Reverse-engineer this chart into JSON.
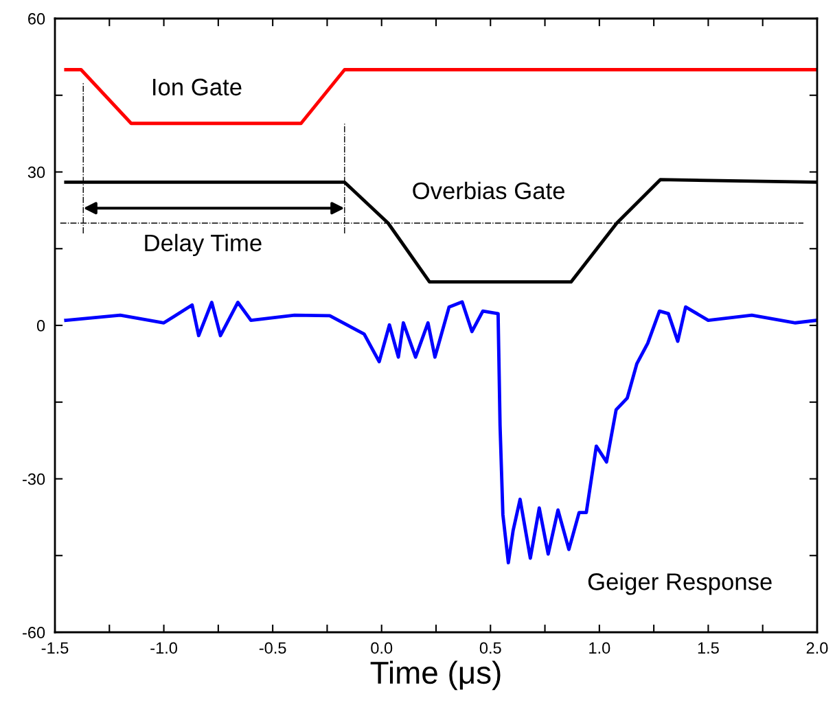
{
  "chart_data": {
    "type": "line",
    "xlabel": "Time (μs)",
    "xlim": [
      -1.5,
      2.0
    ],
    "ylim": [
      -60,
      60
    ],
    "xticks": [
      -1.5,
      {
        "value": -1.25,
        "label": null
      },
      {
        "value": -1,
        "label": "-1.0"
      },
      {
        "value": -0.75,
        "label": null
      },
      -0.5,
      {
        "value": -0.25,
        "label": null
      },
      {
        "value": 0,
        "label": "0.0"
      },
      {
        "value": 0.25,
        "label": null
      },
      0.5,
      {
        "value": 0.75,
        "label": null
      },
      {
        "value": 1,
        "label": "1.0"
      },
      {
        "value": 1.25,
        "label": null
      },
      1.5,
      {
        "value": 1.75,
        "label": null
      },
      {
        "value": 2,
        "label": "2.0"
      }
    ],
    "yticks": [
      -60,
      {
        "value": -45,
        "label": null
      },
      -30,
      {
        "value": -15,
        "label": null
      },
      0,
      {
        "value": 15,
        "label": null
      },
      30,
      {
        "value": 45,
        "label": null
      },
      60
    ],
    "grid": false,
    "legend": false,
    "marker": "none",
    "line_style": "solid",
    "series": [
      {
        "color": "#ff0000",
        "x": [
          -1.45,
          -1.38,
          -1.15,
          -0.37,
          -0.17,
          2.0
        ],
        "values": [
          50,
          50,
          39.5,
          39.5,
          50,
          50
        ]
      },
      {
        "color": "#000000",
        "x": [
          -1.45,
          -0.17,
          0.03,
          0.22,
          0.87,
          1.08,
          1.28,
          2.0
        ],
        "values": [
          28,
          28,
          20,
          8.5,
          8.5,
          20,
          28.5,
          28
        ]
      },
      {
        "color": "#0000ff",
        "x": [
          -1.45,
          -1.2,
          -1.0,
          -0.87,
          -0.84,
          -0.78,
          -0.74,
          -0.66,
          -0.6,
          -0.4,
          -0.238,
          -0.08,
          -0.011,
          0.036,
          0.077,
          0.1,
          0.156,
          0.213,
          0.245,
          0.31,
          0.37,
          0.415,
          0.465,
          0.535,
          0.544,
          0.557,
          0.582,
          0.604,
          0.636,
          0.683,
          0.724,
          0.765,
          0.81,
          0.86,
          0.907,
          0.94,
          0.986,
          1.033,
          1.077,
          1.128,
          1.172,
          1.222,
          1.276,
          1.317,
          1.36,
          1.396,
          1.5,
          1.7,
          1.9,
          2.0
        ],
        "values": [
          1,
          2,
          0.5,
          4,
          -2,
          4.5,
          -2,
          4.5,
          1,
          2,
          1.9,
          -1.7,
          -7.1,
          0.1,
          -6.2,
          0.5,
          -6.2,
          0.5,
          -6.2,
          3.6,
          4.6,
          -1.2,
          2.8,
          2.3,
          -19.6,
          -37,
          -46.4,
          -40.1,
          -34,
          -45.5,
          -35.7,
          -44.7,
          -36.1,
          -43.8,
          -36.6,
          -36.6,
          -23.6,
          -26.7,
          -16.5,
          -14.2,
          -7.5,
          -3.5,
          2.8,
          2.3,
          -3.1,
          3.6,
          1,
          2,
          0.5,
          1
        ]
      }
    ],
    "ref_lines": [
      {
        "axis": "x",
        "value": -1.37,
        "color": "#000000",
        "line_style": "dashdot"
      },
      {
        "axis": "x",
        "value": -0.17,
        "color": "#000000",
        "line_style": "dashdot"
      },
      {
        "axis": "y",
        "value": 20,
        "color": "#000000",
        "line_style": "dashdot"
      }
    ],
    "annotations": [
      "Ion Gate",
      "Overbias Gate",
      "Delay Time",
      "Geiger Response"
    ]
  }
}
